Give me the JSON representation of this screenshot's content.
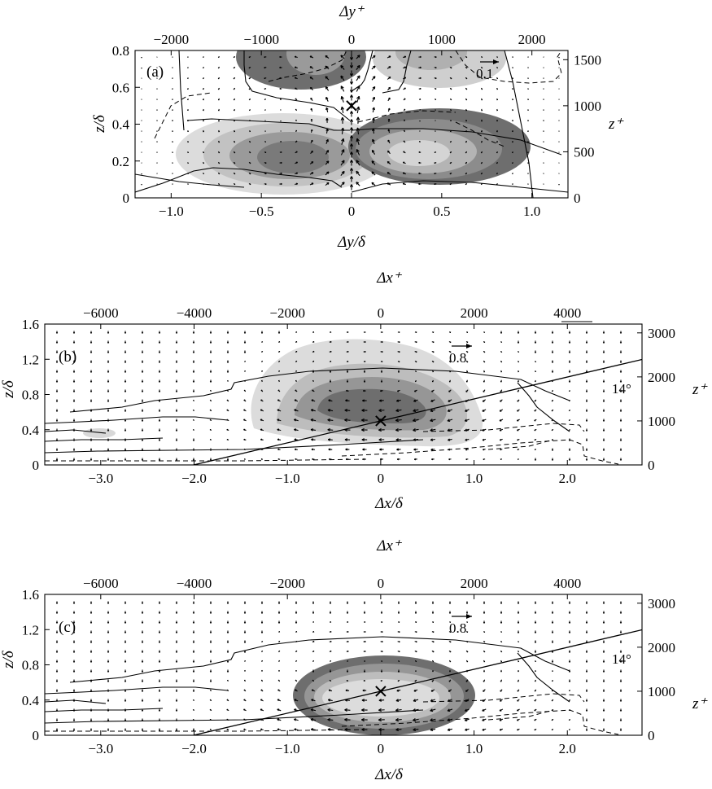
{
  "figure": {
    "panels": [
      {
        "id": "a",
        "label": "(a)",
        "bottom_axis": {
          "label": "Δy/δ",
          "range": [
            -1.2,
            1.2
          ],
          "ticks": [
            -1.0,
            -0.5,
            0,
            0.5,
            1.0
          ],
          "tick_labels": [
            "−1.0",
            "−0.5",
            "0",
            "0.5",
            "1.0"
          ]
        },
        "top_axis": {
          "label": "Δy⁺",
          "range": [
            -2400,
            2400
          ],
          "ticks": [
            -2000,
            -1000,
            0,
            1000,
            2000
          ],
          "tick_labels": [
            "−2000",
            "−1000",
            "0",
            "1000",
            "2000"
          ]
        },
        "left_axis": {
          "label": "z/δ",
          "range": [
            0,
            0.8
          ],
          "ticks": [
            0,
            0.2,
            0.4,
            0.6,
            0.8
          ],
          "tick_labels": [
            "0",
            "0.2",
            "0.4",
            "0.6",
            "0.8"
          ]
        },
        "right_axis": {
          "label": "z⁺",
          "range": [
            0,
            1600
          ],
          "ticks": [
            0,
            500,
            1000,
            1500
          ],
          "tick_labels": [
            "0",
            "500",
            "1000",
            "1500"
          ]
        },
        "reference_vector": "0.1",
        "center_marker": [
          0,
          0.5
        ]
      },
      {
        "id": "b",
        "label": "(b)",
        "bottom_axis": {
          "label": "Δx/δ",
          "range": [
            -3.6,
            2.8
          ],
          "ticks": [
            -3.0,
            -2.0,
            -1.0,
            0,
            1.0,
            2.0
          ],
          "tick_labels": [
            "−3.0",
            "−2.0",
            "−1.0",
            "0",
            "1.0",
            "2.0"
          ]
        },
        "top_axis": {
          "label": "Δx⁺",
          "range": [
            -7200,
            5600
          ],
          "ticks": [
            -6000,
            -4000,
            -2000,
            0,
            2000,
            4000
          ],
          "tick_labels": [
            "−6000",
            "−4000",
            "−2000",
            "0",
            "2000",
            "4000"
          ]
        },
        "left_axis": {
          "label": "z/δ",
          "range": [
            0,
            1.6
          ],
          "ticks": [
            0,
            0.4,
            0.8,
            1.2,
            1.6
          ],
          "tick_labels": [
            "0",
            "0.4",
            "0.8",
            "1.2",
            "1.6"
          ]
        },
        "right_axis": {
          "label": "z⁺",
          "range": [
            0,
            3200
          ],
          "ticks": [
            0,
            1000,
            2000,
            3000
          ],
          "tick_labels": [
            "0",
            "1000",
            "2000",
            "3000"
          ]
        },
        "reference_vector": "0.8",
        "angle_label": "14°",
        "inclined_line_deg": 14,
        "center_marker": [
          0,
          0.5
        ]
      },
      {
        "id": "c",
        "label": "(c)",
        "bottom_axis": {
          "label": "Δx/δ",
          "range": [
            -3.6,
            2.8
          ],
          "ticks": [
            -3.0,
            -2.0,
            -1.0,
            0,
            1.0,
            2.0
          ],
          "tick_labels": [
            "−3.0",
            "−2.0",
            "−1.0",
            "0",
            "1.0",
            "2.0"
          ]
        },
        "top_axis": {
          "label": "Δx⁺",
          "range": [
            -7200,
            5600
          ],
          "ticks": [
            -6000,
            -4000,
            -2000,
            0,
            2000,
            4000
          ],
          "tick_labels": [
            "−6000",
            "−4000",
            "−2000",
            "0",
            "2000",
            "4000"
          ]
        },
        "left_axis": {
          "label": "z/δ",
          "range": [
            0,
            1.6
          ],
          "ticks": [
            0,
            0.4,
            0.8,
            1.2,
            1.6
          ],
          "tick_labels": [
            "0",
            "0.4",
            "0.8",
            "1.2",
            "1.6"
          ]
        },
        "right_axis": {
          "label": "z⁺",
          "range": [
            0,
            3200
          ],
          "ticks": [
            0,
            1000,
            2000,
            3000
          ],
          "tick_labels": [
            "0",
            "1000",
            "2000",
            "3000"
          ]
        },
        "reference_vector": "0.8",
        "angle_label": "14°",
        "inclined_line_deg": 14,
        "center_marker": [
          0,
          0.5
        ]
      }
    ]
  },
  "chart_data": [
    {
      "type": "contour",
      "panel": "(a)",
      "xlabel": "Δy/δ",
      "ylabel": "z/δ",
      "x2label": "Δy⁺",
      "y2label": "z⁺",
      "xlim": [
        -1.2,
        1.2
      ],
      "ylim": [
        0,
        0.8
      ],
      "shading_colors": [
        "#dcdcdc",
        "#b4b4b4",
        "#8c8c8c",
        "#707070"
      ],
      "shaded_regions": [
        {
          "center": [
            -0.38,
            0.24
          ],
          "radii": [
            0.38,
            0.13
          ],
          "levels": 4
        },
        {
          "center": [
            0.4,
            0.26
          ],
          "radii": [
            0.45,
            0.16
          ],
          "levels": 4
        },
        {
          "center": [
            -0.65,
            0.76
          ],
          "radii": [
            0.28,
            0.12
          ],
          "levels": 2
        },
        {
          "center": [
            0.42,
            0.77
          ],
          "radii": [
            0.3,
            0.1
          ],
          "levels": 2
        }
      ],
      "vector_field": "counter-rotating in-plane swirl about Δy = 0, converging toward z/δ ≈ 0.5",
      "reference_vector": "0.1",
      "marker": [
        0,
        0.5
      ]
    },
    {
      "type": "contour",
      "panel": "(b)",
      "xlabel": "Δx/δ",
      "ylabel": "z/δ",
      "x2label": "Δx⁺",
      "y2label": "z⁺",
      "xlim": [
        -3.6,
        2.8
      ],
      "ylim": [
        0,
        1.6
      ],
      "shading_colors": [
        "#dcdcdc",
        "#bdbdbd",
        "#969696",
        "#6e6e6e"
      ],
      "shaded_regions": [
        {
          "center": [
            -0.35,
            0.72
          ],
          "radii": [
            1.35,
            0.7
          ],
          "levels": 4
        },
        {
          "center": [
            -3.35,
            0.36
          ],
          "radii": [
            0.2,
            0.05
          ],
          "levels": 1
        }
      ],
      "inclined_line": {
        "angle_deg": 14,
        "angle_label": "14°",
        "through": [
          0,
          0.5
        ]
      },
      "reference_vector": "0.8",
      "marker": [
        0,
        0.5
      ]
    },
    {
      "type": "contour",
      "panel": "(c)",
      "xlabel": "Δx/δ",
      "ylabel": "z/δ",
      "x2label": "Δx⁺",
      "y2label": "z⁺",
      "xlim": [
        -3.6,
        2.8
      ],
      "ylim": [
        0,
        1.6
      ],
      "shading_colors": [
        "#6e6e6e",
        "#969696",
        "#bdbdbd",
        "#dcdcdc"
      ],
      "shaded_regions": [
        {
          "center": [
            -0.05,
            0.52
          ],
          "radii": [
            0.95,
            0.3
          ],
          "levels": 4
        }
      ],
      "inclined_line": {
        "angle_deg": 14,
        "angle_label": "14°",
        "through": [
          0,
          0.5
        ]
      },
      "reference_vector": "0.8",
      "marker": [
        0,
        0.5
      ]
    }
  ]
}
